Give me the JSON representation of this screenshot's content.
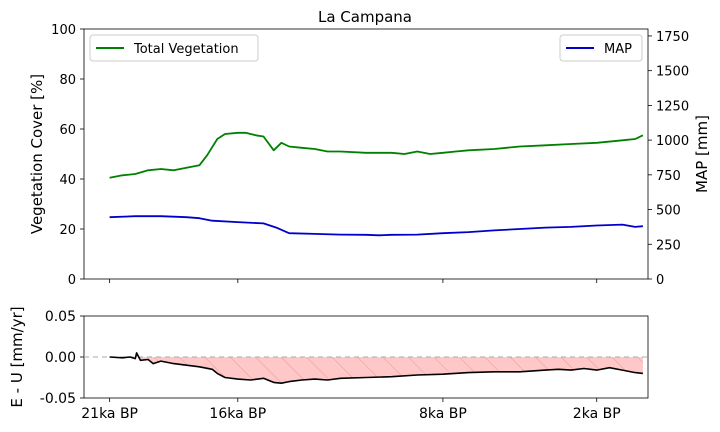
{
  "chart_data": [
    {
      "type": "line",
      "title": "La Campana",
      "xlabel": "",
      "ylabel": "Vegetation Cover [%]",
      "ylabel_right": "MAP [mm]",
      "x_range": [
        22,
        0
      ],
      "ylim": [
        0,
        100
      ],
      "ylim_right": [
        0,
        1800
      ],
      "yticks": [
        0,
        20,
        40,
        60,
        80,
        100
      ],
      "yticks_right": [
        0,
        250,
        500,
        750,
        1000,
        1250,
        1500,
        1750
      ],
      "legend_left": {
        "label": "Total Vegetation",
        "placement": "upper-left"
      },
      "legend_right": {
        "label": "MAP",
        "placement": "upper-right"
      },
      "series": [
        {
          "name": "Total Vegetation",
          "axis": "left",
          "color": "#008000",
          "points": [
            [
              21.0,
              40.5
            ],
            [
              20.5,
              41.5
            ],
            [
              20.0,
              42.0
            ],
            [
              19.5,
              43.5
            ],
            [
              19.0,
              44.0
            ],
            [
              18.5,
              43.5
            ],
            [
              18.0,
              44.5
            ],
            [
              17.5,
              45.5
            ],
            [
              17.2,
              49.5
            ],
            [
              16.8,
              56.0
            ],
            [
              16.5,
              58.0
            ],
            [
              16.0,
              58.5
            ],
            [
              15.7,
              58.5
            ],
            [
              15.3,
              57.5
            ],
            [
              15.0,
              57.0
            ],
            [
              14.6,
              51.5
            ],
            [
              14.3,
              54.5
            ],
            [
              14.0,
              53.0
            ],
            [
              13.5,
              52.5
            ],
            [
              13.0,
              52.0
            ],
            [
              12.5,
              51.0
            ],
            [
              12.0,
              51.0
            ],
            [
              11.0,
              50.5
            ],
            [
              10.0,
              50.5
            ],
            [
              9.5,
              50.0
            ],
            [
              9.0,
              51.0
            ],
            [
              8.5,
              50.0
            ],
            [
              8.0,
              50.5
            ],
            [
              7.5,
              51.0
            ],
            [
              7.0,
              51.5
            ],
            [
              6.0,
              52.0
            ],
            [
              5.0,
              53.0
            ],
            [
              4.0,
              53.5
            ],
            [
              3.0,
              54.0
            ],
            [
              2.0,
              54.5
            ],
            [
              1.0,
              55.5
            ],
            [
              0.5,
              56.0
            ],
            [
              0.2,
              57.5
            ]
          ]
        },
        {
          "name": "MAP",
          "axis": "right",
          "color": "#0000cc",
          "points": [
            [
              21.0,
              445
            ],
            [
              20.0,
              452
            ],
            [
              19.0,
              452
            ],
            [
              18.0,
              445
            ],
            [
              17.5,
              438
            ],
            [
              17.0,
              420
            ],
            [
              16.0,
              410
            ],
            [
              15.0,
              400
            ],
            [
              14.5,
              370
            ],
            [
              14.0,
              330
            ],
            [
              13.0,
              325
            ],
            [
              12.0,
              320
            ],
            [
              11.0,
              318
            ],
            [
              10.5,
              315
            ],
            [
              10.0,
              318
            ],
            [
              9.0,
              320
            ],
            [
              8.0,
              330
            ],
            [
              7.0,
              338
            ],
            [
              6.0,
              350
            ],
            [
              5.0,
              360
            ],
            [
              4.0,
              370
            ],
            [
              3.0,
              375
            ],
            [
              2.0,
              385
            ],
            [
              1.0,
              392
            ],
            [
              0.5,
              375
            ],
            [
              0.2,
              380
            ]
          ]
        }
      ]
    },
    {
      "type": "area",
      "title": "",
      "xlabel": "",
      "ylabel": "E - U [mm/yr]",
      "x_range": [
        22,
        0
      ],
      "ylim": [
        -0.05,
        0.05
      ],
      "yticks": [
        "-0.05",
        "0.00",
        "0.05"
      ],
      "xticks": [
        "21ka BP",
        "16ka BP",
        "8ka BP",
        "2ka BP"
      ],
      "xtick_values": [
        21,
        16,
        8,
        2
      ],
      "reference_line": 0,
      "fill_color": "#ffc8c8",
      "series": [
        {
          "name": "",
          "color": "#000000",
          "points": [
            [
              21.0,
              0.0
            ],
            [
              20.5,
              -0.001
            ],
            [
              20.2,
              0.0
            ],
            [
              20.0,
              -0.002
            ],
            [
              19.95,
              0.005
            ],
            [
              19.8,
              -0.004
            ],
            [
              19.5,
              -0.003
            ],
            [
              19.3,
              -0.008
            ],
            [
              19.0,
              -0.005
            ],
            [
              18.5,
              -0.008
            ],
            [
              18.0,
              -0.01
            ],
            [
              17.5,
              -0.012
            ],
            [
              17.0,
              -0.015
            ],
            [
              16.8,
              -0.02
            ],
            [
              16.5,
              -0.025
            ],
            [
              16.0,
              -0.027
            ],
            [
              15.5,
              -0.028
            ],
            [
              15.0,
              -0.026
            ],
            [
              14.6,
              -0.031
            ],
            [
              14.3,
              -0.032
            ],
            [
              14.0,
              -0.03
            ],
            [
              13.5,
              -0.028
            ],
            [
              13.0,
              -0.027
            ],
            [
              12.5,
              -0.028
            ],
            [
              12.0,
              -0.026
            ],
            [
              11.0,
              -0.025
            ],
            [
              10.0,
              -0.024
            ],
            [
              9.0,
              -0.022
            ],
            [
              8.0,
              -0.021
            ],
            [
              7.0,
              -0.019
            ],
            [
              6.0,
              -0.018
            ],
            [
              5.0,
              -0.018
            ],
            [
              4.0,
              -0.016
            ],
            [
              3.5,
              -0.015
            ],
            [
              3.0,
              -0.016
            ],
            [
              2.5,
              -0.014
            ],
            [
              2.0,
              -0.016
            ],
            [
              1.5,
              -0.013
            ],
            [
              1.0,
              -0.016
            ],
            [
              0.5,
              -0.019
            ],
            [
              0.2,
              -0.02
            ]
          ]
        }
      ]
    }
  ]
}
